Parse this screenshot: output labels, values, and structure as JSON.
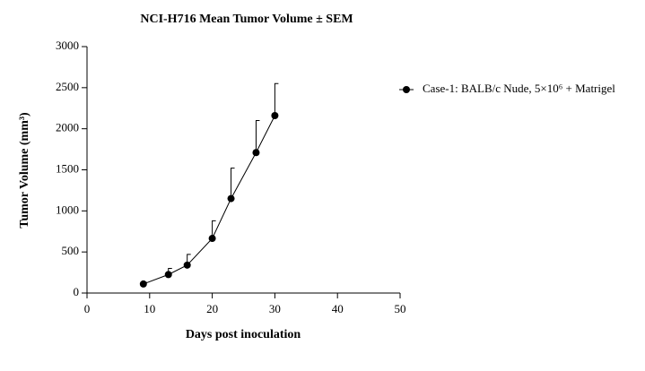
{
  "chart_data": {
    "type": "line",
    "title": "NCI-H716 Mean Tumor Volume ± SEM",
    "x_label": "Days post inoculation",
    "y_label": "Tumor Volume (mm³)",
    "x": [
      9,
      13,
      16,
      20,
      23,
      27,
      30
    ],
    "series": [
      {
        "name": "Case-1: BALB/c Nude, 5×10⁶ + Matrigel",
        "color": "#000000",
        "values": [
          110,
          225,
          340,
          665,
          1150,
          1710,
          2160
        ],
        "errors": [
          20,
          75,
          130,
          215,
          370,
          390,
          390
        ]
      }
    ],
    "xlim": [
      0,
      50
    ],
    "xticks": [
      0,
      10,
      20,
      30,
      40,
      50
    ],
    "ylim": [
      0,
      3000
    ],
    "yticks": [
      0,
      500,
      1000,
      1500,
      2000,
      2500,
      3000
    ],
    "legend": "right"
  }
}
